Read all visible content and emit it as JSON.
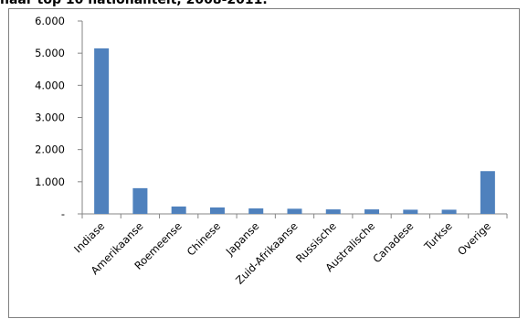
{
  "title": "naar top 10 nationaliteit, 2008-2011.",
  "chart_data": {
    "type": "bar",
    "title": "naar top 10 nationaliteit, 2008-2011.",
    "categories": [
      "Indiase",
      "Amerikaanse",
      "Roemeense",
      "Chinese",
      "Japanse",
      "Zuid-Afrikaanse",
      "Russische",
      "Australische",
      "Canadese",
      "Turkse",
      "Overige"
    ],
    "values": [
      5150,
      800,
      230,
      200,
      170,
      160,
      140,
      140,
      130,
      130,
      1330
    ],
    "ylim": [
      0,
      6000
    ],
    "yticks": [
      0,
      1000,
      2000,
      3000,
      4000,
      5000,
      6000
    ],
    "ytick_labels": [
      "-",
      "1.000",
      "2.000",
      "3.000",
      "4.000",
      "5.000",
      "6.000"
    ],
    "bar_color": "#4F81BD",
    "grid": false,
    "legend": "none"
  }
}
